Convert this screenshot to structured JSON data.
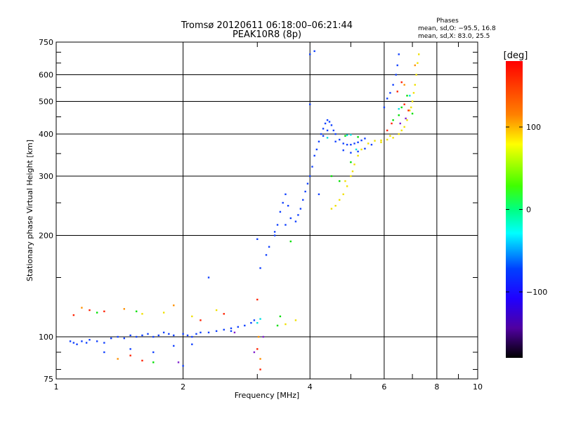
{
  "chart_data": {
    "type": "scatter",
    "title": "Tromsø 20120611 06:18:00–06:21:44",
    "subtitle": "PEAK10R8 (8p)",
    "xlabel": "Frequency [MHz]",
    "ylabel": "Stationary phase Virtual Height [km]",
    "x_scale": "log",
    "y_scale": "log",
    "xlim": [
      1,
      10
    ],
    "ylim": [
      75,
      750
    ],
    "x_ticks": [
      1,
      2,
      4,
      6,
      8,
      10
    ],
    "x_tick_labels": [
      "1",
      "2",
      "4",
      "6",
      "8",
      "10"
    ],
    "y_ticks": [
      75,
      100,
      200,
      300,
      400,
      500,
      600,
      750
    ],
    "y_tick_labels": [
      "75",
      "100",
      "200",
      "300",
      "400",
      "500",
      "600",
      "750"
    ],
    "grid": true,
    "phase_stats": {
      "heading": "Phases",
      "o_line": "mean, sd,O: −95.5, 16.8",
      "x_line": "mean, sd,X: 83.0, 25.5"
    },
    "colorbar": {
      "label": "[deg]",
      "min": -180,
      "max": 180,
      "ticks": [
        100,
        0,
        -100
      ],
      "tick_labels": [
        "100",
        "0",
        "−100"
      ]
    },
    "series": [
      {
        "color": "#1040ff",
        "points": [
          [
            1.08,
            97
          ],
          [
            1.1,
            96
          ],
          [
            1.12,
            95
          ],
          [
            1.15,
            97
          ],
          [
            1.18,
            96
          ],
          [
            1.2,
            98
          ],
          [
            1.25,
            97
          ],
          [
            1.3,
            96
          ],
          [
            1.35,
            99
          ],
          [
            1.4,
            100
          ],
          [
            1.45,
            99
          ],
          [
            1.5,
            101
          ],
          [
            1.55,
            100
          ],
          [
            1.6,
            101
          ],
          [
            1.65,
            102
          ],
          [
            1.7,
            100
          ],
          [
            1.75,
            101
          ],
          [
            1.8,
            103
          ],
          [
            1.85,
            102
          ],
          [
            1.9,
            101
          ],
          [
            2.0,
            102
          ],
          [
            2.05,
            101
          ],
          [
            2.1,
            100
          ],
          [
            2.15,
            102
          ],
          [
            2.2,
            103
          ],
          [
            2.3,
            103
          ],
          [
            2.4,
            104
          ],
          [
            2.5,
            105
          ],
          [
            2.6,
            106
          ],
          [
            2.7,
            107
          ],
          [
            2.8,
            108
          ],
          [
            2.9,
            110
          ],
          [
            2.95,
            112
          ],
          [
            3.05,
            160
          ],
          [
            3.15,
            175
          ],
          [
            3.2,
            185
          ],
          [
            3.3,
            200
          ],
          [
            3.35,
            215
          ],
          [
            3.4,
            235
          ],
          [
            3.45,
            250
          ],
          [
            3.5,
            265
          ],
          [
            3.55,
            245
          ],
          [
            3.6,
            225
          ],
          [
            3.7,
            220
          ],
          [
            3.75,
            230
          ],
          [
            3.8,
            240
          ],
          [
            3.85,
            255
          ],
          [
            3.9,
            270
          ],
          [
            3.95,
            285
          ],
          [
            4.0,
            300
          ],
          [
            4.05,
            320
          ],
          [
            4.1,
            345
          ],
          [
            4.15,
            360
          ],
          [
            4.2,
            380
          ],
          [
            4.25,
            400
          ],
          [
            4.3,
            415
          ],
          [
            4.35,
            430
          ],
          [
            4.4,
            440
          ],
          [
            4.45,
            435
          ],
          [
            4.5,
            425
          ],
          [
            4.55,
            410
          ],
          [
            4.6,
            400
          ],
          [
            4.7,
            385
          ],
          [
            4.8,
            375
          ],
          [
            4.9,
            372
          ],
          [
            5.0,
            372
          ],
          [
            5.1,
            375
          ],
          [
            5.2,
            378
          ],
          [
            5.3,
            383
          ],
          [
            5.4,
            388
          ],
          [
            4.3,
            395
          ],
          [
            4.4,
            410
          ],
          [
            4.6,
            380
          ],
          [
            4.8,
            358
          ],
          [
            5.0,
            352
          ],
          [
            5.2,
            355
          ],
          [
            5.4,
            362
          ],
          [
            5.6,
            372
          ],
          [
            3.3,
            205
          ],
          [
            3.5,
            215
          ],
          [
            4.0,
            690
          ],
          [
            4.0,
            490
          ],
          [
            4.1,
            705
          ],
          [
            6.0,
            480
          ],
          [
            6.1,
            510
          ],
          [
            6.2,
            530
          ],
          [
            6.3,
            560
          ],
          [
            6.4,
            600
          ],
          [
            6.45,
            640
          ],
          [
            6.5,
            690
          ],
          [
            1.5,
            92
          ],
          [
            1.7,
            90
          ],
          [
            2.1,
            95
          ],
          [
            1.9,
            94
          ],
          [
            2.6,
            104
          ],
          [
            3.0,
            195
          ],
          [
            4.2,
            265
          ],
          [
            2.3,
            150
          ],
          [
            2.0,
            82
          ],
          [
            1.3,
            90
          ]
        ]
      },
      {
        "color": "#f0e000",
        "points": [
          [
            4.5,
            240
          ],
          [
            4.6,
            245
          ],
          [
            4.7,
            255
          ],
          [
            4.8,
            265
          ],
          [
            4.9,
            280
          ],
          [
            5.0,
            300
          ],
          [
            5.1,
            325
          ],
          [
            5.2,
            345
          ],
          [
            5.3,
            360
          ],
          [
            5.5,
            375
          ],
          [
            5.7,
            382
          ],
          [
            5.9,
            383
          ],
          [
            6.1,
            385
          ],
          [
            6.3,
            390
          ],
          [
            6.5,
            400
          ],
          [
            6.7,
            420
          ],
          [
            6.8,
            440
          ],
          [
            6.9,
            470
          ],
          [
            7.0,
            500
          ],
          [
            7.05,
            530
          ],
          [
            7.1,
            560
          ],
          [
            7.15,
            600
          ],
          [
            7.2,
            650
          ],
          [
            7.25,
            690
          ],
          [
            1.8,
            118
          ],
          [
            2.1,
            115
          ],
          [
            2.4,
            120
          ],
          [
            1.6,
            117
          ],
          [
            3.7,
            112
          ],
          [
            3.5,
            109
          ],
          [
            5.9,
            378
          ],
          [
            6.2,
            395
          ],
          [
            6.6,
            410
          ],
          [
            6.95,
            480
          ],
          [
            4.85,
            290
          ],
          [
            5.05,
            310
          ]
        ]
      },
      {
        "color": "#00e000",
        "points": [
          [
            1.25,
            118
          ],
          [
            1.55,
            119
          ],
          [
            1.7,
            84
          ],
          [
            3.35,
            108
          ],
          [
            3.4,
            115
          ],
          [
            4.5,
            300
          ],
          [
            4.7,
            290
          ],
          [
            5.0,
            330
          ],
          [
            5.2,
            392
          ],
          [
            6.3,
            440
          ],
          [
            6.5,
            455
          ],
          [
            6.6,
            480
          ],
          [
            6.8,
            520
          ],
          [
            7.0,
            460
          ],
          [
            3.6,
            192
          ],
          [
            4.85,
            395
          ]
        ]
      },
      {
        "color": "#ff2000",
        "points": [
          [
            1.1,
            116
          ],
          [
            1.2,
            120
          ],
          [
            1.3,
            119
          ],
          [
            1.5,
            88
          ],
          [
            1.6,
            85
          ],
          [
            2.2,
            112
          ],
          [
            2.5,
            117
          ],
          [
            3.0,
            129
          ],
          [
            3.0,
            92
          ],
          [
            3.05,
            80
          ],
          [
            6.1,
            410
          ],
          [
            6.25,
            430
          ],
          [
            6.45,
            535
          ],
          [
            6.6,
            570
          ],
          [
            6.7,
            490
          ],
          [
            6.85,
            470
          ]
        ]
      },
      {
        "color": "#00e0e0",
        "points": [
          [
            3.0,
            110
          ],
          [
            3.05,
            113
          ],
          [
            4.9,
            397
          ],
          [
            5.0,
            398
          ],
          [
            5.15,
            360
          ],
          [
            6.5,
            475
          ],
          [
            6.9,
            520
          ],
          [
            4.4,
            390
          ]
        ]
      },
      {
        "color": "#ff9000",
        "points": [
          [
            1.15,
            122
          ],
          [
            1.45,
            121
          ],
          [
            1.9,
            124
          ],
          [
            3.02,
            100
          ],
          [
            3.05,
            86
          ],
          [
            6.7,
            560
          ],
          [
            7.1,
            640
          ],
          [
            1.4,
            86
          ]
        ]
      },
      {
        "color": "#8020d0",
        "points": [
          [
            2.65,
            103
          ],
          [
            2.95,
            90
          ],
          [
            6.55,
            430
          ],
          [
            6.75,
            445
          ],
          [
            1.95,
            84
          ],
          [
            3.1,
            100
          ]
        ]
      }
    ]
  }
}
